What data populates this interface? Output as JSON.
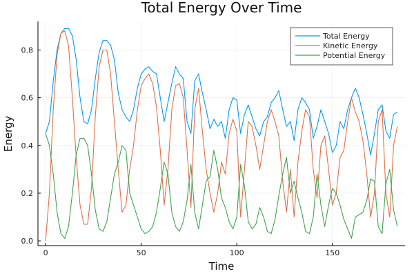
{
  "chart_data": {
    "type": "line",
    "title": "Total Energy Over Time",
    "xlabel": "Time",
    "ylabel": "Energy",
    "xlim": [
      -4,
      188
    ],
    "ylim": [
      -0.02,
      0.92
    ],
    "xticks": [
      0,
      50,
      100,
      150
    ],
    "yticks": [
      0.0,
      0.2,
      0.4,
      0.6,
      0.8
    ],
    "xtick_labels": [
      "0",
      "50",
      "100",
      "150"
    ],
    "ytick_labels": [
      "0.0",
      "0.2",
      "0.4",
      "0.6",
      "0.8"
    ],
    "grid": true,
    "legend_position": "top-right",
    "series": [
      {
        "name": "Total Energy",
        "color": "#009AFA",
        "x": [
          0,
          2,
          4,
          6,
          8,
          10,
          12,
          14,
          16,
          18,
          20,
          22,
          24,
          26,
          28,
          30,
          32,
          34,
          36,
          38,
          40,
          42,
          44,
          46,
          48,
          50,
          52,
          54,
          56,
          58,
          60,
          62,
          64,
          66,
          68,
          70,
          72,
          74,
          76,
          78,
          80,
          82,
          84,
          86,
          88,
          90,
          92,
          94,
          96,
          98,
          100,
          102,
          104,
          106,
          108,
          110,
          112,
          114,
          116,
          118,
          120,
          122,
          124,
          126,
          128,
          130,
          132,
          134,
          136,
          138,
          140,
          142,
          144,
          146,
          148,
          150,
          152,
          154,
          156,
          158,
          160,
          162,
          164,
          166,
          168,
          170,
          172,
          174,
          176,
          178,
          180,
          182,
          184
        ],
        "y": [
          0.45,
          0.5,
          0.67,
          0.8,
          0.87,
          0.89,
          0.89,
          0.86,
          0.76,
          0.6,
          0.5,
          0.49,
          0.55,
          0.68,
          0.79,
          0.84,
          0.84,
          0.82,
          0.76,
          0.62,
          0.55,
          0.52,
          0.5,
          0.55,
          0.64,
          0.7,
          0.72,
          0.73,
          0.71,
          0.7,
          0.6,
          0.5,
          0.58,
          0.66,
          0.73,
          0.7,
          0.68,
          0.5,
          0.45,
          0.67,
          0.7,
          0.62,
          0.55,
          0.47,
          0.51,
          0.48,
          0.5,
          0.43,
          0.55,
          0.6,
          0.59,
          0.45,
          0.53,
          0.57,
          0.52,
          0.47,
          0.44,
          0.5,
          0.52,
          0.58,
          0.6,
          0.63,
          0.55,
          0.48,
          0.5,
          0.42,
          0.55,
          0.6,
          0.58,
          0.55,
          0.43,
          0.48,
          0.55,
          0.5,
          0.45,
          0.37,
          0.4,
          0.5,
          0.47,
          0.55,
          0.6,
          0.64,
          0.6,
          0.53,
          0.45,
          0.36,
          0.45,
          0.55,
          0.57,
          0.46,
          0.43,
          0.53,
          0.54
        ]
      },
      {
        "name": "Kinetic Energy",
        "color": "#E36F47",
        "x": [
          0,
          2,
          4,
          6,
          8,
          10,
          12,
          14,
          16,
          18,
          20,
          22,
          24,
          26,
          28,
          30,
          32,
          34,
          36,
          38,
          40,
          42,
          44,
          46,
          48,
          50,
          52,
          54,
          56,
          58,
          60,
          62,
          64,
          66,
          68,
          70,
          72,
          74,
          76,
          78,
          80,
          82,
          84,
          86,
          88,
          90,
          92,
          94,
          96,
          98,
          100,
          102,
          104,
          106,
          108,
          110,
          112,
          114,
          116,
          118,
          120,
          122,
          124,
          126,
          128,
          130,
          132,
          134,
          136,
          138,
          140,
          142,
          144,
          146,
          148,
          150,
          152,
          154,
          156,
          158,
          160,
          162,
          164,
          166,
          168,
          170,
          172,
          174,
          176,
          178,
          180,
          182,
          184
        ],
        "y": [
          0.0,
          0.2,
          0.55,
          0.78,
          0.87,
          0.88,
          0.82,
          0.6,
          0.35,
          0.15,
          0.07,
          0.07,
          0.22,
          0.52,
          0.73,
          0.8,
          0.8,
          0.7,
          0.5,
          0.3,
          0.12,
          0.15,
          0.3,
          0.4,
          0.55,
          0.65,
          0.68,
          0.7,
          0.66,
          0.56,
          0.38,
          0.15,
          0.3,
          0.55,
          0.65,
          0.66,
          0.6,
          0.38,
          0.14,
          0.55,
          0.64,
          0.46,
          0.3,
          0.2,
          0.12,
          0.2,
          0.33,
          0.28,
          0.45,
          0.51,
          0.46,
          0.1,
          0.3,
          0.5,
          0.48,
          0.4,
          0.3,
          0.4,
          0.5,
          0.55,
          0.5,
          0.44,
          0.25,
          0.12,
          0.3,
          0.1,
          0.33,
          0.46,
          0.55,
          0.52,
          0.3,
          0.18,
          0.4,
          0.44,
          0.3,
          0.15,
          0.2,
          0.35,
          0.38,
          0.5,
          0.6,
          0.54,
          0.5,
          0.42,
          0.28,
          0.1,
          0.2,
          0.5,
          0.55,
          0.2,
          0.1,
          0.4,
          0.48
        ]
      },
      {
        "name": "Potential Energy",
        "color": "#3EA44E",
        "x": [
          0,
          2,
          4,
          6,
          8,
          10,
          12,
          14,
          16,
          18,
          20,
          22,
          24,
          26,
          28,
          30,
          32,
          34,
          36,
          38,
          40,
          42,
          44,
          46,
          48,
          50,
          52,
          54,
          56,
          58,
          60,
          62,
          64,
          66,
          68,
          70,
          72,
          74,
          76,
          78,
          80,
          82,
          84,
          86,
          88,
          90,
          92,
          94,
          96,
          98,
          100,
          102,
          104,
          106,
          108,
          110,
          112,
          114,
          116,
          118,
          120,
          122,
          124,
          126,
          128,
          130,
          132,
          134,
          136,
          138,
          140,
          142,
          144,
          146,
          148,
          150,
          152,
          154,
          156,
          158,
          160,
          162,
          164,
          166,
          168,
          170,
          172,
          174,
          176,
          178,
          180,
          182,
          184
        ],
        "y": [
          0.45,
          0.4,
          0.28,
          0.12,
          0.03,
          0.01,
          0.06,
          0.2,
          0.36,
          0.43,
          0.43,
          0.4,
          0.28,
          0.13,
          0.05,
          0.04,
          0.08,
          0.18,
          0.28,
          0.33,
          0.4,
          0.38,
          0.2,
          0.15,
          0.1,
          0.05,
          0.03,
          0.04,
          0.06,
          0.12,
          0.22,
          0.33,
          0.28,
          0.12,
          0.06,
          0.04,
          0.08,
          0.17,
          0.32,
          0.12,
          0.05,
          0.15,
          0.25,
          0.27,
          0.38,
          0.3,
          0.18,
          0.14,
          0.08,
          0.05,
          0.1,
          0.32,
          0.23,
          0.08,
          0.05,
          0.07,
          0.14,
          0.1,
          0.04,
          0.03,
          0.09,
          0.19,
          0.28,
          0.35,
          0.2,
          0.25,
          0.18,
          0.12,
          0.04,
          0.03,
          0.1,
          0.28,
          0.15,
          0.06,
          0.15,
          0.22,
          0.2,
          0.15,
          0.09,
          0.05,
          0.01,
          0.1,
          0.11,
          0.12,
          0.17,
          0.26,
          0.25,
          0.06,
          0.03,
          0.24,
          0.3,
          0.13,
          0.06
        ]
      }
    ]
  }
}
